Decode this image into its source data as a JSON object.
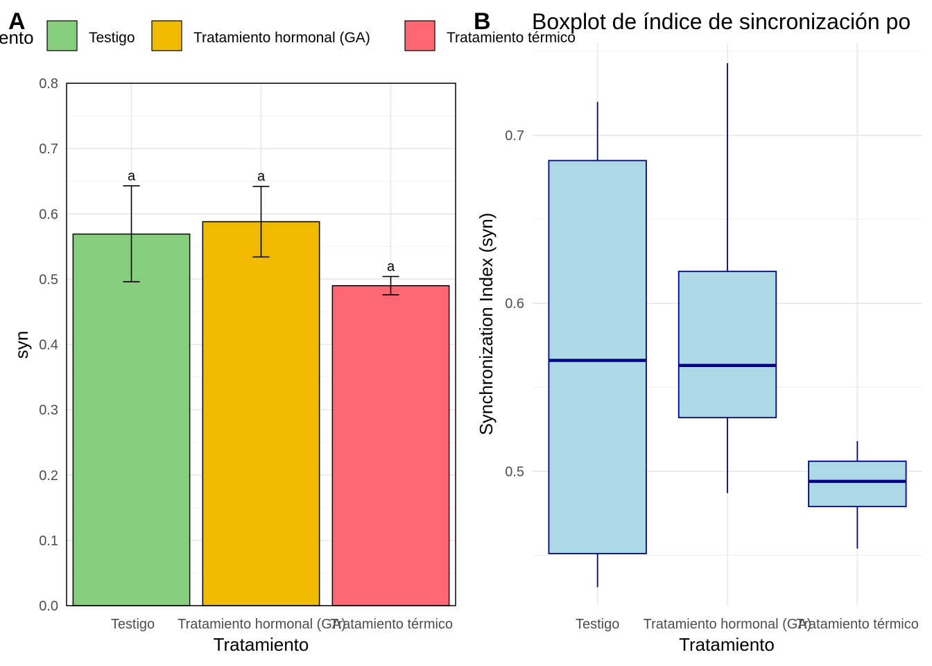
{
  "legend": {
    "title": "ento",
    "items": [
      {
        "label": "Testigo",
        "color": "#86CD7E"
      },
      {
        "label": "Tratamiento hormonal (GA)",
        "color": "#F0BA00"
      },
      {
        "label": "Tratamiento térmico",
        "color": "#FF6673"
      }
    ]
  },
  "chart_data": [
    {
      "type": "bar",
      "panel_tag": "A",
      "title": "",
      "xlabel": "Tratamiento",
      "ylabel": "syn",
      "categories": [
        "Testigo",
        "Tratamiento hormonal (GA)",
        "Tratamiento térmico"
      ],
      "values": [
        0.569,
        0.588,
        0.49
      ],
      "error_low": [
        0.496,
        0.534,
        0.476
      ],
      "error_high": [
        0.643,
        0.642,
        0.504
      ],
      "letters": [
        "a",
        "a",
        "a"
      ],
      "colors": [
        "#86CD7E",
        "#F0BA00",
        "#FF6673"
      ],
      "ylim": [
        0,
        0.8
      ],
      "yticks": [
        "0.0",
        "0.1",
        "0.2",
        "0.3",
        "0.4",
        "0.5",
        "0.6",
        "0.7",
        "0.8"
      ],
      "grid": true,
      "legend_position": "top"
    },
    {
      "type": "boxplot",
      "panel_tag": "B",
      "title": "Boxplot de índice de sincronización po",
      "xlabel": "Tratamiento",
      "ylabel": "Synchronization Index (syn)",
      "categories": [
        "Testigo",
        "Tratamiento hormonal (GA)",
        "Tratamiento térmico"
      ],
      "boxes": [
        {
          "whisker_low": 0.431,
          "q1": 0.451,
          "median": 0.566,
          "q3": 0.685,
          "whisker_high": 0.72
        },
        {
          "whisker_low": 0.487,
          "q1": 0.532,
          "median": 0.563,
          "q3": 0.619,
          "whisker_high": 0.743
        },
        {
          "whisker_low": 0.454,
          "q1": 0.479,
          "median": 0.494,
          "q3": 0.506,
          "whisker_high": 0.518
        }
      ],
      "fill_color": "#ADD8E6",
      "line_color": "#00008B",
      "ylim": [
        0.42,
        0.755
      ],
      "yticks": [
        "0.5",
        "0.6",
        "0.7"
      ],
      "grid": true
    }
  ]
}
